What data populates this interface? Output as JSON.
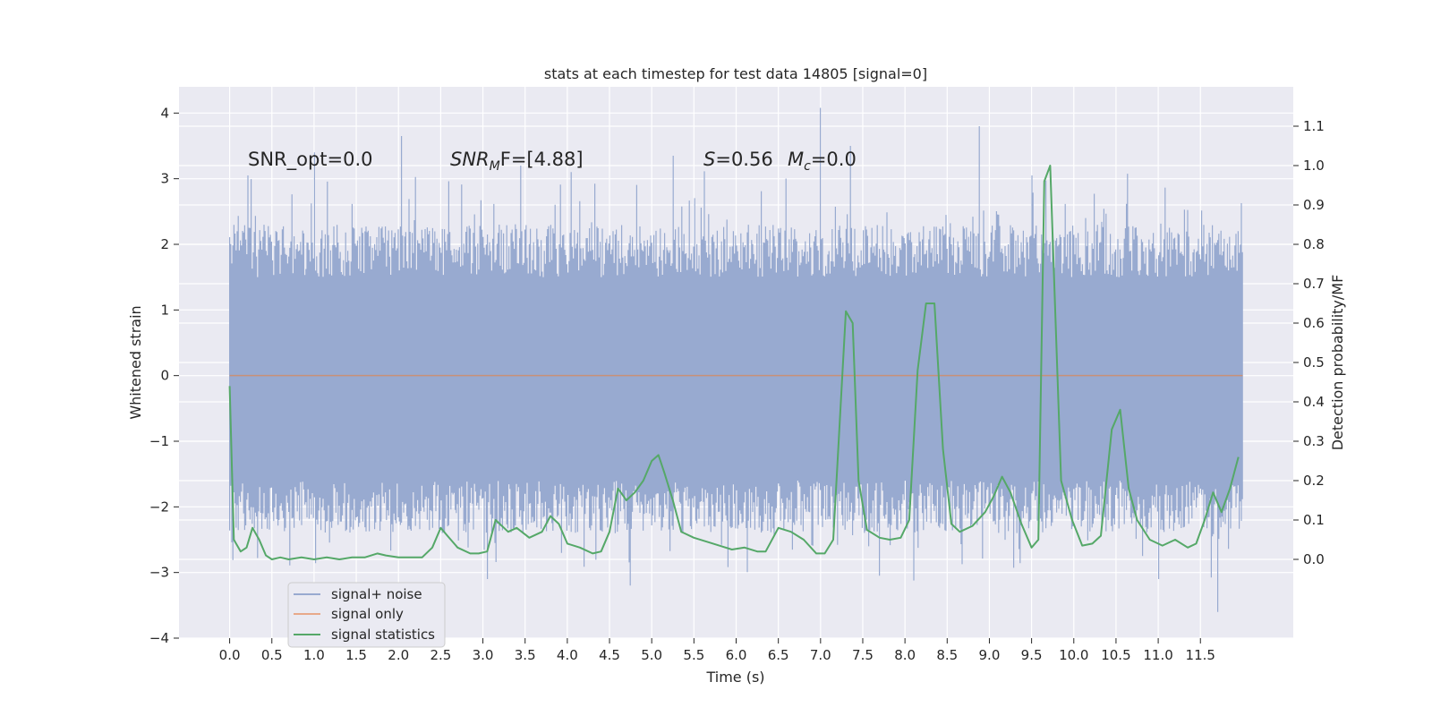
{
  "chart_data": {
    "type": "line",
    "title": "stats at each timestep for test data 14805 [signal=0]",
    "xlabel": "Time (s)",
    "ylabel_left": "Whitened strain",
    "ylabel_right": "Detection probability/MF",
    "xlim": [
      -0.6,
      12.6
    ],
    "ylim_left": [
      -4.0,
      4.4
    ],
    "ylim_right": [
      -0.2,
      1.2
    ],
    "xticks": [
      0.0,
      0.5,
      1.0,
      1.5,
      2.0,
      2.5,
      3.0,
      3.5,
      4.0,
      4.5,
      5.0,
      5.5,
      6.0,
      6.5,
      7.0,
      7.5,
      8.0,
      8.5,
      9.0,
      9.5,
      10.0,
      10.5,
      11.0,
      11.5
    ],
    "xtick_labels": [
      "0.0",
      "0.5",
      "1.0",
      "1.5",
      "2.0",
      "2.5",
      "3.0",
      "3.5",
      "4.0",
      "4.5",
      "5.0",
      "5.5",
      "6.0",
      "6.5",
      "7.0",
      "7.5",
      "8.0",
      "8.5",
      "9.0",
      "9.5",
      "10.0",
      "10.5",
      "11.0",
      "11.5"
    ],
    "yticks_left": [
      -4,
      -3,
      -2,
      -1,
      0,
      1,
      2,
      3,
      4
    ],
    "ytick_labels_left": [
      "−4",
      "−3",
      "−2",
      "−1",
      "0",
      "1",
      "2",
      "3",
      "4"
    ],
    "yticks_right": [
      0.0,
      0.1,
      0.2,
      0.3,
      0.4,
      0.5,
      0.6,
      0.7,
      0.8,
      0.9,
      1.0,
      1.1
    ],
    "ytick_labels_right": [
      "0.0",
      "0.1",
      "0.2",
      "0.3",
      "0.4",
      "0.5",
      "0.6",
      "0.7",
      "0.8",
      "0.9",
      "1.0",
      "1.1"
    ],
    "annotations": {
      "snr_opt": "SNR_opt=0.0",
      "snr_mf_prefix": "SNR",
      "snr_mf_sub": "M",
      "snr_mf_suffix": "F=[4.88]",
      "s_symbol": "S",
      "s_value": "=0.56",
      "mc_symbol": "M",
      "mc_sub": "c",
      "mc_value": "=0.0"
    },
    "legend": {
      "position": "lower-left",
      "entries": [
        "signal+ noise",
        "signal only",
        "signal statistics"
      ]
    },
    "series": [
      {
        "name": "signal+ noise",
        "axis": "left",
        "color": "#98aad0",
        "description": "whitened noise, ~12 s, values mostly within [-3.6, 4.1]",
        "x_range": [
          0.0,
          12.0
        ],
        "y_range": [
          -3.6,
          4.1
        ],
        "peaks": [
          {
            "x": 0.22,
            "y": 3.05
          },
          {
            "x": 1.0,
            "y": 3.4
          },
          {
            "x": 2.03,
            "y": 3.65
          },
          {
            "x": 3.45,
            "y": 3.2
          },
          {
            "x": 4.05,
            "y": 3.1
          },
          {
            "x": 5.25,
            "y": 3.35
          },
          {
            "x": 7.0,
            "y": 4.08
          },
          {
            "x": 7.35,
            "y": 3.5
          },
          {
            "x": 8.88,
            "y": 3.8
          },
          {
            "x": 9.5,
            "y": 3.05
          },
          {
            "x": 4.75,
            "y": -3.2
          },
          {
            "x": 7.7,
            "y": -3.05
          },
          {
            "x": 11.7,
            "y": -3.6
          },
          {
            "x": 11.0,
            "y": -3.1
          },
          {
            "x": 3.05,
            "y": -3.1
          }
        ]
      },
      {
        "name": "signal only",
        "axis": "left",
        "color": "#dd8452",
        "x": [
          0.0,
          12.0
        ],
        "y": [
          0.0,
          0.0
        ]
      },
      {
        "name": "signal statistics",
        "axis": "right",
        "color": "#55a868",
        "x": [
          0.0,
          0.05,
          0.13,
          0.2,
          0.27,
          0.35,
          0.43,
          0.5,
          0.6,
          0.7,
          0.85,
          1.0,
          1.15,
          1.3,
          1.45,
          1.6,
          1.75,
          1.85,
          2.0,
          2.15,
          2.28,
          2.4,
          2.5,
          2.58,
          2.7,
          2.85,
          2.95,
          3.05,
          3.15,
          3.3,
          3.4,
          3.55,
          3.7,
          3.8,
          3.9,
          4.0,
          4.15,
          4.3,
          4.4,
          4.5,
          4.6,
          4.7,
          4.8,
          4.9,
          5.0,
          5.08,
          5.15,
          5.25,
          5.35,
          5.5,
          5.65,
          5.8,
          5.95,
          6.1,
          6.25,
          6.35,
          6.5,
          6.65,
          6.8,
          6.95,
          7.05,
          7.15,
          7.3,
          7.38,
          7.45,
          7.55,
          7.7,
          7.82,
          7.95,
          8.05,
          8.15,
          8.25,
          8.35,
          8.45,
          8.55,
          8.65,
          8.8,
          8.95,
          9.05,
          9.15,
          9.25,
          9.38,
          9.5,
          9.58,
          9.65,
          9.72,
          9.85,
          9.98,
          10.1,
          10.22,
          10.32,
          10.45,
          10.55,
          10.65,
          10.75,
          10.9,
          11.05,
          11.2,
          11.35,
          11.45,
          11.55,
          11.65,
          11.75,
          11.85,
          11.95
        ],
        "y": [
          0.44,
          0.05,
          0.02,
          0.03,
          0.08,
          0.05,
          0.01,
          0.0,
          0.005,
          0.0,
          0.005,
          0.0,
          0.005,
          0.0,
          0.005,
          0.005,
          0.015,
          0.01,
          0.005,
          0.005,
          0.005,
          0.03,
          0.08,
          0.06,
          0.03,
          0.015,
          0.015,
          0.02,
          0.1,
          0.07,
          0.08,
          0.055,
          0.07,
          0.11,
          0.09,
          0.04,
          0.03,
          0.015,
          0.02,
          0.07,
          0.18,
          0.15,
          0.17,
          0.2,
          0.25,
          0.265,
          0.22,
          0.15,
          0.07,
          0.055,
          0.045,
          0.035,
          0.025,
          0.03,
          0.02,
          0.02,
          0.08,
          0.07,
          0.05,
          0.015,
          0.015,
          0.05,
          0.63,
          0.6,
          0.2,
          0.075,
          0.055,
          0.05,
          0.055,
          0.1,
          0.48,
          0.65,
          0.65,
          0.28,
          0.09,
          0.07,
          0.085,
          0.12,
          0.16,
          0.21,
          0.17,
          0.09,
          0.03,
          0.05,
          0.96,
          1.0,
          0.2,
          0.1,
          0.035,
          0.04,
          0.06,
          0.33,
          0.38,
          0.18,
          0.1,
          0.05,
          0.035,
          0.05,
          0.03,
          0.04,
          0.1,
          0.17,
          0.12,
          0.18,
          0.26
        ]
      }
    ]
  }
}
